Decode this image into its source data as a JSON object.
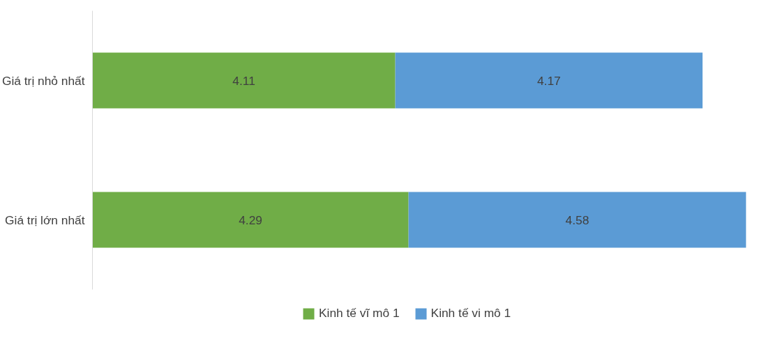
{
  "chart_data": {
    "type": "bar",
    "orientation": "horizontal",
    "stacked": true,
    "categories": [
      "Giá trị nhỏ nhất",
      "Giá trị lớn nhất"
    ],
    "series": [
      {
        "name": "Kinh tế vĩ mô 1",
        "color": "#70ad47",
        "values": [
          4.11,
          4.29
        ]
      },
      {
        "name": "Kinh tế vi mô 1",
        "color": "#5b9bd5",
        "values": [
          4.17,
          4.58
        ]
      }
    ],
    "xlim": [
      0,
      8.9
    ],
    "data_labels": true,
    "grid": false,
    "legend": "bottom",
    "tick_labels": "y"
  }
}
